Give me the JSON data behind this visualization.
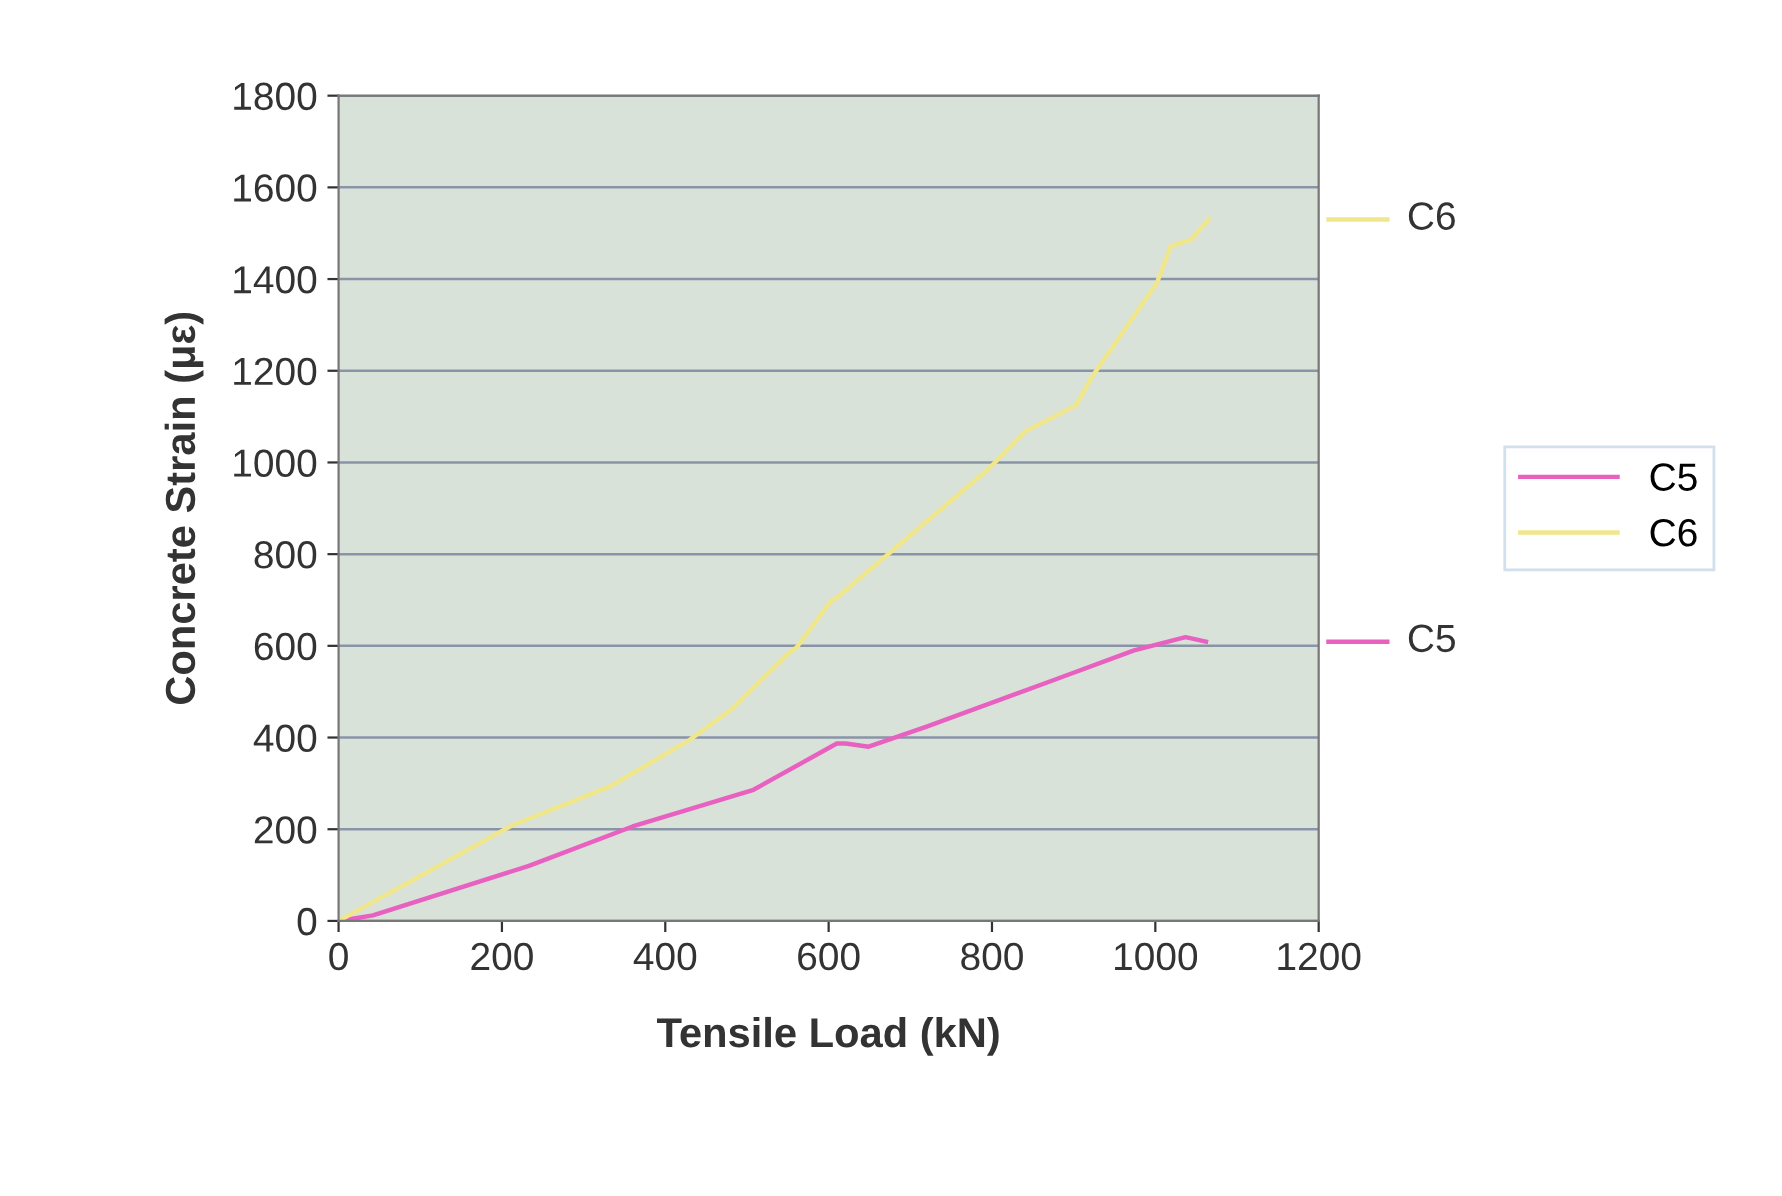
{
  "chart_data": {
    "type": "line",
    "xlabel": "Tensile Load (kN)",
    "ylabel": "Concrete Strain (με)",
    "xlim": [
      0,
      1200
    ],
    "xticks": [
      0,
      200,
      400,
      600,
      800,
      1000,
      1200
    ],
    "ylim": [
      0,
      1800
    ],
    "yticks": [
      0,
      200,
      400,
      600,
      800,
      1000,
      1200,
      1400,
      1600,
      1800
    ],
    "grid": "y",
    "legend": "right",
    "marker": "none",
    "line_style": "solid",
    "series": [
      {
        "name": "C5",
        "color": "#e860c0",
        "x": [
          0,
          42,
          233,
          360,
          508,
          610,
          621,
          649,
          720,
          875,
          974,
          1037,
          1062
        ],
        "values": [
          0,
          12,
          120,
          206,
          286,
          387,
          387,
          380,
          424,
          525,
          590,
          619,
          609
        ]
      },
      {
        "name": "C6",
        "color": "#f0e68c",
        "x": [
          0,
          212,
          332,
          430,
          480,
          550,
          561,
          603,
          610,
          663,
          797,
          840,
          903,
          921,
          1002,
          1019,
          1044,
          1065
        ],
        "values": [
          0,
          208,
          293,
          395,
          460,
          582,
          597,
          698,
          705,
          785,
          988,
          1067,
          1125,
          1183,
          1392,
          1472,
          1486,
          1530
        ]
      }
    ],
    "annotations": [
      "C5",
      "C6"
    ]
  }
}
